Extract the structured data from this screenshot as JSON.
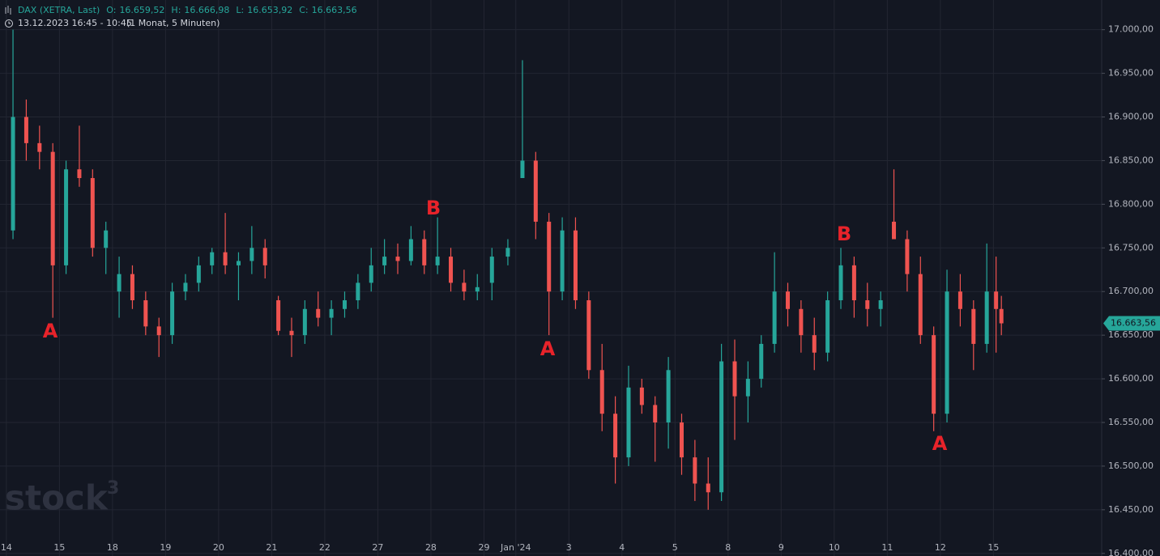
{
  "chart_data": {
    "type": "candlestick",
    "symbol": "DAX (XETRA, Last)",
    "ohlc_header": [
      {
        "label": "O:",
        "value": "16.659,52"
      },
      {
        "label": "H:",
        "value": "16.666,98"
      },
      {
        "label": "L:",
        "value": "16.653,92"
      },
      {
        "label": "C:",
        "value": "16.663,56"
      }
    ],
    "time_range": "13.12.2023 16:45 - 10:45",
    "interval": "(1 Monat, 5 Minuten)",
    "watermark": {
      "text": "stock",
      "sup": "3"
    },
    "last_price": {
      "value": 16663.56,
      "label": "16.663,56"
    },
    "up_color": "#26a69a",
    "down_color": "#ef5350",
    "grid": true,
    "xlim": [
      -0.12,
      20.64
    ],
    "ylim": [
      16397,
      17034
    ],
    "xticks": [
      {
        "value": 0,
        "label": "14"
      },
      {
        "value": 1,
        "label": "15"
      },
      {
        "value": 2,
        "label": "18"
      },
      {
        "value": 3,
        "label": "19"
      },
      {
        "value": 4,
        "label": "20"
      },
      {
        "value": 5,
        "label": "21"
      },
      {
        "value": 6,
        "label": "22"
      },
      {
        "value": 7,
        "label": "27"
      },
      {
        "value": 8,
        "label": "28"
      },
      {
        "value": 9,
        "label": "29"
      },
      {
        "value": 9.6,
        "label": "Jan '24"
      },
      {
        "value": 10.6,
        "label": "3"
      },
      {
        "value": 11.6,
        "label": "4"
      },
      {
        "value": 12.6,
        "label": "5"
      },
      {
        "value": 13.6,
        "label": "8"
      },
      {
        "value": 14.6,
        "label": "9"
      },
      {
        "value": 15.6,
        "label": "10"
      },
      {
        "value": 16.6,
        "label": "11"
      },
      {
        "value": 17.6,
        "label": "12"
      },
      {
        "value": 18.6,
        "label": "15"
      }
    ],
    "yticks": [
      {
        "value": 17000,
        "label": "17.000,00"
      },
      {
        "value": 16950,
        "label": "16.950,00"
      },
      {
        "value": 16900,
        "label": "16.900,00"
      },
      {
        "value": 16850,
        "label": "16.850,00"
      },
      {
        "value": 16800,
        "label": "16.800,00"
      },
      {
        "value": 16750,
        "label": "16.750,00"
      },
      {
        "value": 16700,
        "label": "16.700,00"
      },
      {
        "value": 16650,
        "label": "16.650,00"
      },
      {
        "value": 16600,
        "label": "16.600,00"
      },
      {
        "value": 16550,
        "label": "16.550,00"
      },
      {
        "value": 16500,
        "label": "16.500,00"
      },
      {
        "value": 16450,
        "label": "16.450,00"
      },
      {
        "value": 16400,
        "label": "16.400,00"
      }
    ],
    "x": [
      0.125,
      0.375,
      0.625,
      0.875,
      1.125,
      1.375,
      1.625,
      1.875,
      2.125,
      2.375,
      2.625,
      2.875,
      3.125,
      3.375,
      3.625,
      3.875,
      4.125,
      4.375,
      4.625,
      4.875,
      5.125,
      5.375,
      5.625,
      5.875,
      6.125,
      6.375,
      6.625,
      6.875,
      7.125,
      7.375,
      7.625,
      7.875,
      8.125,
      8.375,
      8.625,
      8.875,
      9.15,
      9.45,
      9.725,
      9.975,
      10.225,
      10.475,
      10.725,
      10.975,
      11.225,
      11.475,
      11.725,
      11.975,
      12.225,
      12.475,
      12.725,
      12.975,
      13.225,
      13.475,
      13.725,
      13.975,
      14.225,
      14.475,
      14.725,
      14.975,
      15.225,
      15.475,
      15.725,
      15.975,
      16.225,
      16.475,
      16.725,
      16.975,
      17.225,
      17.475,
      17.725,
      17.975,
      18.225,
      18.475,
      18.65,
      18.75
    ],
    "open": [
      16770,
      16900,
      16870,
      16860,
      16730,
      16840,
      16830,
      16750,
      16700,
      16720,
      16690,
      16660,
      16650,
      16700,
      16710,
      16730,
      16745,
      16730,
      16735,
      16750,
      16690,
      16655,
      16650,
      16680,
      16670,
      16680,
      16690,
      16710,
      16730,
      16740,
      16735,
      16760,
      16730,
      16740,
      16710,
      16700,
      16710,
      16740,
      16830,
      16850,
      16780,
      16700,
      16770,
      16690,
      16610,
      16560,
      16510,
      16590,
      16570,
      16550,
      16550,
      16510,
      16480,
      16470,
      16620,
      16580,
      16600,
      16640,
      16700,
      16680,
      16650,
      16630,
      16690,
      16730,
      16690,
      16680,
      16780,
      16760,
      16720,
      16650,
      16560,
      16700,
      16680,
      16640,
      16700,
      16680
    ],
    "high": [
      17000,
      16920,
      16890,
      16870,
      16850,
      16890,
      16840,
      16780,
      16740,
      16730,
      16700,
      16670,
      16710,
      16720,
      16740,
      16750,
      16790,
      16745,
      16775,
      16760,
      16695,
      16670,
      16690,
      16700,
      16690,
      16700,
      16720,
      16750,
      16760,
      16755,
      16775,
      16770,
      16785,
      16750,
      16725,
      16720,
      16750,
      16760,
      16965,
      16860,
      16790,
      16785,
      16785,
      16700,
      16640,
      16580,
      16615,
      16600,
      16580,
      16625,
      16560,
      16530,
      16510,
      16640,
      16645,
      16620,
      16650,
      16745,
      16710,
      16690,
      16670,
      16700,
      16750,
      16740,
      16710,
      16700,
      16840,
      16770,
      16740,
      16660,
      16725,
      16720,
      16690,
      16755,
      16740,
      16695
    ],
    "low": [
      16760,
      16850,
      16840,
      16670,
      16720,
      16820,
      16740,
      16720,
      16670,
      16680,
      16650,
      16625,
      16640,
      16690,
      16700,
      16720,
      16720,
      16690,
      16720,
      16715,
      16650,
      16625,
      16640,
      16660,
      16650,
      16670,
      16680,
      16700,
      16720,
      16720,
      16730,
      16720,
      16720,
      16700,
      16690,
      16690,
      16690,
      16730,
      16830,
      16760,
      16650,
      16690,
      16680,
      16600,
      16540,
      16480,
      16500,
      16560,
      16505,
      16520,
      16490,
      16460,
      16450,
      16460,
      16530,
      16550,
      16590,
      16630,
      16660,
      16630,
      16610,
      16620,
      16680,
      16670,
      16660,
      16660,
      16760,
      16700,
      16640,
      16540,
      16550,
      16660,
      16610,
      16630,
      16630,
      16650
    ],
    "close": [
      16900,
      16870,
      16860,
      16730,
      16840,
      16830,
      16750,
      16770,
      16720,
      16690,
      16660,
      16650,
      16700,
      16710,
      16730,
      16745,
      16730,
      16735,
      16750,
      16730,
      16655,
      16650,
      16680,
      16670,
      16680,
      16690,
      16710,
      16730,
      16740,
      16735,
      16760,
      16730,
      16740,
      16710,
      16700,
      16705,
      16740,
      16750,
      16850,
      16780,
      16700,
      16770,
      16690,
      16610,
      16560,
      16510,
      16590,
      16570,
      16550,
      16610,
      16510,
      16480,
      16470,
      16620,
      16580,
      16600,
      16640,
      16700,
      16680,
      16650,
      16630,
      16690,
      16730,
      16690,
      16680,
      16690,
      16760,
      16720,
      16650,
      16560,
      16700,
      16680,
      16640,
      16700,
      16680,
      16663.56
    ],
    "annotations": [
      "A",
      "B",
      "A",
      "B",
      "A"
    ]
  }
}
